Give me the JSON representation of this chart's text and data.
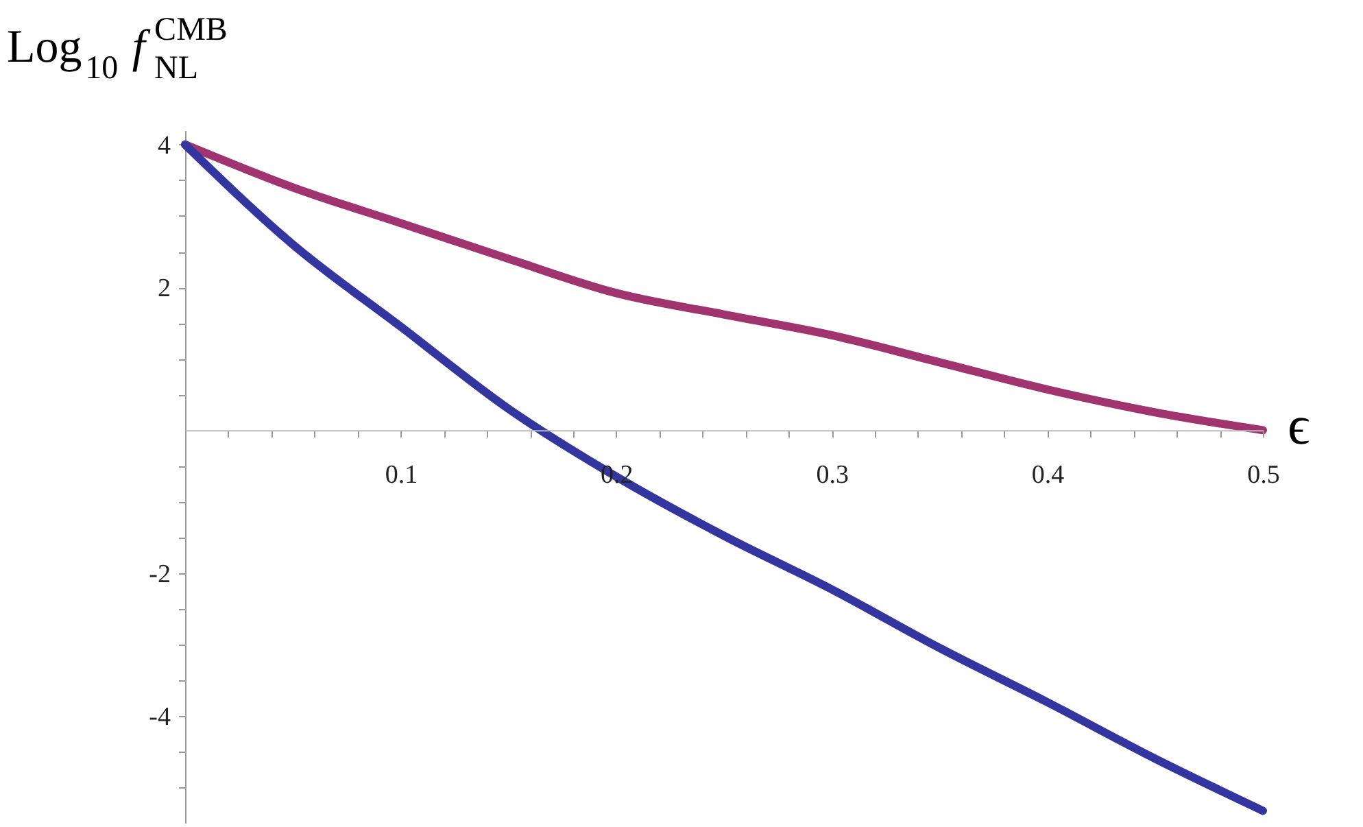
{
  "chart_data": {
    "type": "line",
    "xlabel": "ϵ",
    "ylabel": "Log$_{10}$ f$^{CMB}$$_{NL}$",
    "x": [
      0,
      0.05,
      0.1,
      0.15,
      0.2,
      0.25,
      0.3,
      0.35,
      0.4,
      0.45,
      0.5
    ],
    "series": [
      {
        "color": "#a0346e",
        "values": [
          4,
          3.4,
          2.9,
          2.4,
          1.92,
          1.62,
          1.33,
          0.95,
          0.57,
          0.25,
          0.0
        ]
      },
      {
        "color": "#3535a0",
        "values": [
          4,
          2.6,
          1.45,
          0.3,
          -0.65,
          -1.48,
          -2.23,
          -3.05,
          -3.81,
          -4.6,
          -5.33
        ]
      }
    ],
    "xlim": [
      0,
      0.5
    ],
    "ylim": [
      -5.5,
      4.2
    ],
    "xticks": [
      {
        "value": 0.02,
        "label": null
      },
      {
        "value": 0.04,
        "label": null
      },
      {
        "value": 0.06,
        "label": null
      },
      {
        "value": 0.08,
        "label": null
      },
      0.1,
      {
        "value": 0.12,
        "label": null
      },
      {
        "value": 0.14,
        "label": null
      },
      {
        "value": 0.16,
        "label": null
      },
      {
        "value": 0.18,
        "label": null
      },
      0.2,
      {
        "value": 0.22,
        "label": null
      },
      {
        "value": 0.24,
        "label": null
      },
      {
        "value": 0.26,
        "label": null
      },
      {
        "value": 0.28,
        "label": null
      },
      0.3,
      {
        "value": 0.32,
        "label": null
      },
      {
        "value": 0.34,
        "label": null
      },
      {
        "value": 0.36,
        "label": null
      },
      {
        "value": 0.38,
        "label": null
      },
      0.4,
      {
        "value": 0.42,
        "label": null
      },
      {
        "value": 0.44,
        "label": null
      },
      {
        "value": 0.46,
        "label": null
      },
      {
        "value": 0.48,
        "label": null
      },
      0.5
    ],
    "yticks": [
      4,
      {
        "value": 3.5,
        "label": null
      },
      {
        "value": 3,
        "label": null
      },
      {
        "value": 2.5,
        "label": null
      },
      2,
      {
        "value": 1.5,
        "label": null
      },
      {
        "value": 1,
        "label": null
      },
      {
        "value": 0.5,
        "label": null
      },
      {
        "value": -0.5,
        "label": null
      },
      {
        "value": -1,
        "label": null
      },
      {
        "value": -1.5,
        "label": null
      },
      -2,
      {
        "value": -2.5,
        "label": null
      },
      {
        "value": -3,
        "label": null
      },
      {
        "value": -3.5,
        "label": null
      },
      -4,
      {
        "value": -4.5,
        "label": null
      },
      {
        "value": -5,
        "label": null
      }
    ],
    "grid": false,
    "legend": false,
    "marker": "none",
    "line_style": "solid"
  }
}
